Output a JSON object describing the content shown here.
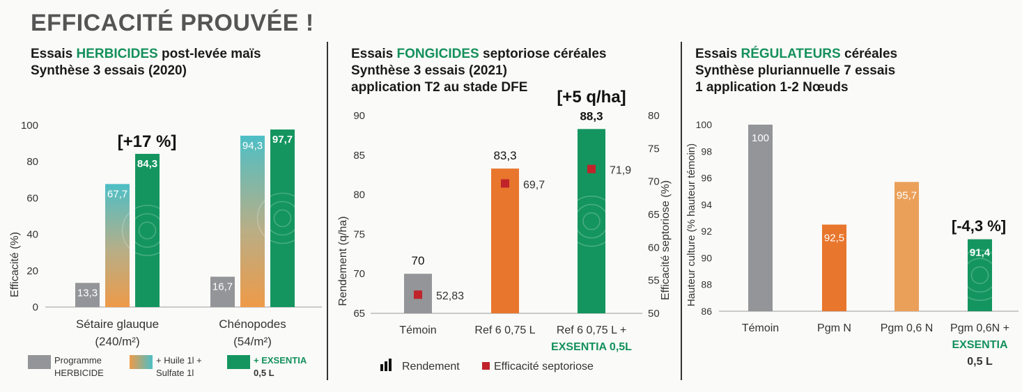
{
  "page_title": "EFFICACITÉ PROUVÉE !",
  "colors": {
    "grey": "#939598",
    "orange": "#e8762d",
    "orange_light": "#eba05a",
    "teal": "#4dbfc6",
    "green": "#14955f",
    "red": "#c0232a",
    "accent_text": "#13905b"
  },
  "panels": {
    "herbicides": {
      "title_line1_pre": "Essais ",
      "title_line1_hl": "HERBICIDES",
      "title_line1_post": " post-levée maïs",
      "title_line2": "Synthèse 3 essais (2020)"
    },
    "fongicides": {
      "title_line1_pre": "Essais ",
      "title_line1_hl": "FONGICIDES",
      "title_line1_post": " septoriose céréales",
      "title_line2": "Synthèse 3 essais (2021)",
      "title_line3": "application T2 au stade DFE"
    },
    "regulateurs": {
      "title_line1_pre": "Essais ",
      "title_line1_hl": "RÉGULATEURS",
      "title_line1_post": " céréales",
      "title_line2": "Synthèse pluriannuelle 7 essais",
      "title_line3": "1 application 1-2 Nœuds"
    }
  },
  "chart_data": [
    {
      "type": "bar",
      "ylabel": "Efficacité (%)",
      "ylim": [
        0,
        100
      ],
      "yticks": [
        "0",
        "20",
        "40",
        "60",
        "80",
        "100"
      ],
      "categories": [
        "Sétaire glauque (240/m²)",
        "Chénopodes (54/m²)"
      ],
      "category_lines": [
        [
          "Sétaire glauque",
          "(240/m²)"
        ],
        [
          "Chénopodes",
          "(54/m²)"
        ]
      ],
      "series": [
        {
          "name": "Programme HERBICIDE",
          "values": [
            13.3,
            16.7
          ],
          "labels": [
            "13,3",
            "16,7"
          ]
        },
        {
          "name": "+ Huile 1l + Sulfate 1l",
          "values": [
            67.7,
            94.3
          ],
          "labels": [
            "67,7",
            "94,3"
          ]
        },
        {
          "name": "+ EXSENTIA 0,5 L",
          "values": [
            84.3,
            97.7
          ],
          "labels": [
            "84,3",
            "97,7"
          ]
        }
      ],
      "legend": [
        {
          "lines": [
            "Programme",
            "HERBICIDE"
          ]
        },
        {
          "lines": [
            "+ Huile 1l +",
            "Sulfate 1l"
          ]
        },
        {
          "lines": [
            "+ EXSENTIA",
            "0,5 L"
          ]
        }
      ],
      "annotation": "[+17 %]"
    },
    {
      "type": "bar",
      "ylabel": "Rendement (q/ha)",
      "ylabel_right": "Efficacité septoriose (%)",
      "ylim": [
        65,
        90
      ],
      "ylim_right": [
        50,
        80
      ],
      "yticks": [
        "65",
        "70",
        "75",
        "80",
        "85",
        "90"
      ],
      "yticks_right": [
        "50",
        "55",
        "60",
        "65",
        "70",
        "75",
        "80"
      ],
      "categories": [
        "Témoin",
        "Ref 6 0,75 L",
        "Ref 6 0,75 L + EXSENTIA 0,5L"
      ],
      "category_lines": [
        [
          "Témoin"
        ],
        [
          "Ref 6 0,75 L"
        ],
        [
          "Ref 6 0,75 L +",
          "EXSENTIA 0,5L"
        ]
      ],
      "series": [
        {
          "name": "Rendement",
          "values": [
            70,
            83.3,
            88.3
          ],
          "labels": [
            "70",
            "83,3",
            "88,3"
          ]
        },
        {
          "name": "Efficacité septoriose",
          "values": [
            52.83,
            69.7,
            71.9
          ],
          "labels": [
            "52,83",
            "69,7",
            "71,9"
          ]
        }
      ],
      "legend": [
        "Rendement",
        "Efficacité septoriose"
      ],
      "annotation": "[+5 q/ha]"
    },
    {
      "type": "bar",
      "ylabel": "Hauteur culture (% hauteur témoin)",
      "ylim": [
        86,
        100
      ],
      "yticks": [
        "86",
        "88",
        "90",
        "92",
        "94",
        "96",
        "98",
        "100"
      ],
      "categories": [
        "Témoin",
        "Pgm N",
        "Pgm 0,6 N",
        "Pgm 0,6N + EXSENTIA 0,5 L"
      ],
      "category_lines": [
        [
          "Témoin"
        ],
        [
          "Pgm N"
        ],
        [
          "Pgm 0,6 N"
        ],
        [
          "Pgm 0,6N +",
          "EXSENTIA",
          "0,5 L"
        ]
      ],
      "series": [
        {
          "name": "Hauteur culture",
          "values": [
            100,
            92.5,
            95.7,
            91.4
          ],
          "labels": [
            "100",
            "92,5",
            "95,7",
            "91,4"
          ]
        }
      ],
      "annotation": "[-4,3 %]"
    }
  ]
}
